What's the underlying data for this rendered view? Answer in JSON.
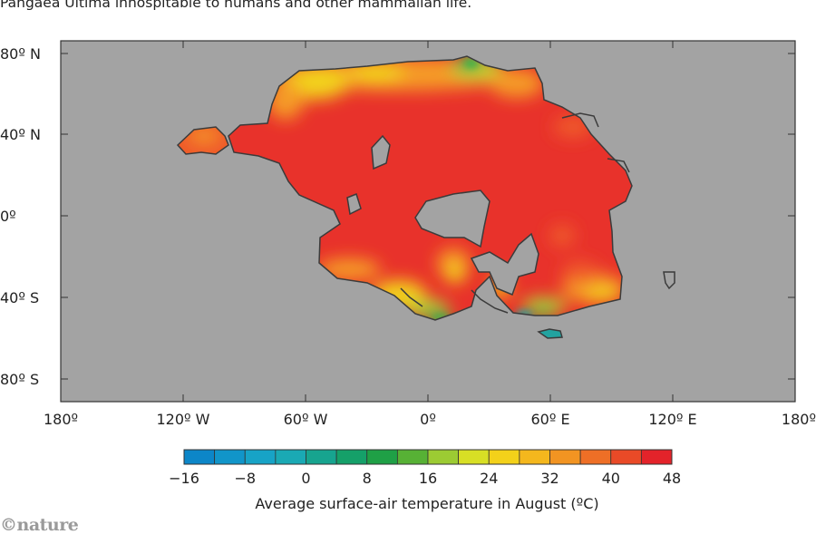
{
  "caption": "Pangaea Ultima inhospitable to humans and other mammalian life.",
  "map": {
    "ocean_color": "#a3a3a3",
    "land_colors": {
      "hot": "#e8322b",
      "orange_red": "#ef5a2b",
      "orange": "#f59b25",
      "yellow": "#f2d21e",
      "yellow_green": "#b8d433",
      "green": "#3fb548",
      "teal": "#22a3a0"
    },
    "y_ticks": [
      "80º N",
      "40º N",
      "0º",
      "40º S",
      "80º S"
    ],
    "x_ticks": [
      "180º",
      "120º W",
      "60º W",
      "0º",
      "60º E",
      "120º E",
      "180º"
    ]
  },
  "colorbar": {
    "colors": [
      "#0c86c8",
      "#1195c9",
      "#17a3c6",
      "#1aa9b4",
      "#17a48f",
      "#15a069",
      "#1fa046",
      "#57b135",
      "#9ccb33",
      "#d8df25",
      "#f3d11a",
      "#f4b71d",
      "#f29422",
      "#ee6f26",
      "#e94a27",
      "#e3232a"
    ],
    "tick_labels": [
      "−16",
      "−8",
      "0",
      "8",
      "16",
      "24",
      "32",
      "40",
      "48"
    ],
    "title": "Average surface-air temperature in August (ºC)"
  },
  "logo": "©nature"
}
